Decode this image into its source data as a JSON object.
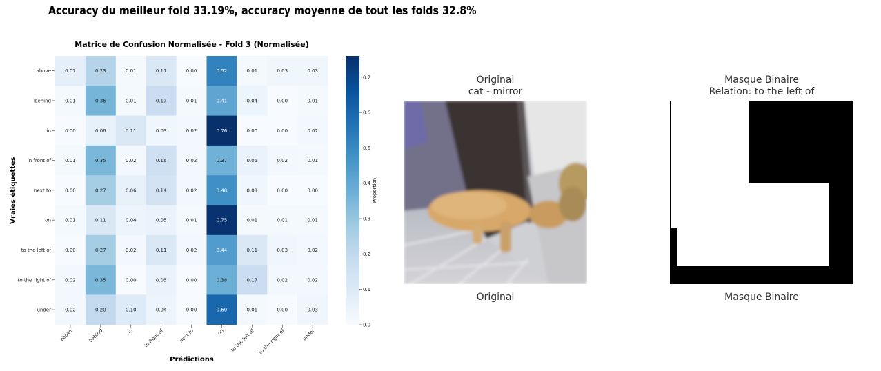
{
  "headline": "Accuracy du meilleur fold 33.19%, accuracy moyenne de tout les folds  32.8%",
  "chart_data": {
    "type": "heatmap",
    "title": "Matrice de Confusion Normalisée - Fold 3 (Normalisée)",
    "xlabel": "Prédictions",
    "ylabel": "Vraies étiquettes",
    "rows": [
      "above",
      "behind",
      "in",
      "in front of",
      "next to",
      "on",
      "to the left of",
      "to the right of",
      "under"
    ],
    "cols": [
      "above",
      "behind",
      "in",
      "in front of",
      "next to",
      "on",
      "to the left of",
      "to the right of",
      "under"
    ],
    "values": [
      [
        0.07,
        0.23,
        0.01,
        0.11,
        0.0,
        0.52,
        0.01,
        0.03,
        0.03
      ],
      [
        0.01,
        0.36,
        0.01,
        0.17,
        0.01,
        0.41,
        0.04,
        0.0,
        0.01
      ],
      [
        0.0,
        0.06,
        0.11,
        0.03,
        0.02,
        0.76,
        0.0,
        0.0,
        0.02
      ],
      [
        0.01,
        0.35,
        0.02,
        0.16,
        0.02,
        0.37,
        0.05,
        0.02,
        0.01
      ],
      [
        0.0,
        0.27,
        0.06,
        0.14,
        0.02,
        0.48,
        0.03,
        0.0,
        0.0
      ],
      [
        0.01,
        0.11,
        0.04,
        0.05,
        0.01,
        0.75,
        0.01,
        0.01,
        0.01
      ],
      [
        0.0,
        0.27,
        0.02,
        0.11,
        0.02,
        0.44,
        0.11,
        0.03,
        0.02
      ],
      [
        0.02,
        0.35,
        0.0,
        0.05,
        0.0,
        0.38,
        0.17,
        0.02,
        0.02
      ],
      [
        0.02,
        0.2,
        0.1,
        0.04,
        0.0,
        0.6,
        0.01,
        0.0,
        0.03
      ]
    ],
    "colorbar": {
      "label": "Proportion",
      "range": [
        0.0,
        0.76
      ],
      "ticks": [
        "0.0",
        "0.1",
        "0.2",
        "0.3",
        "0.4",
        "0.5",
        "0.6",
        "0.7"
      ],
      "colormap": "Blues"
    }
  },
  "panels": {
    "original": {
      "title_line1": "Original",
      "title_line2": "cat - mirror",
      "label": "Original",
      "image_icon": "cat-photo"
    },
    "mask": {
      "title_line1": "Masque Binaire",
      "title_line2": "Relation: to the left of",
      "label": "Masque Binaire",
      "image_icon": "binary-mask"
    }
  }
}
